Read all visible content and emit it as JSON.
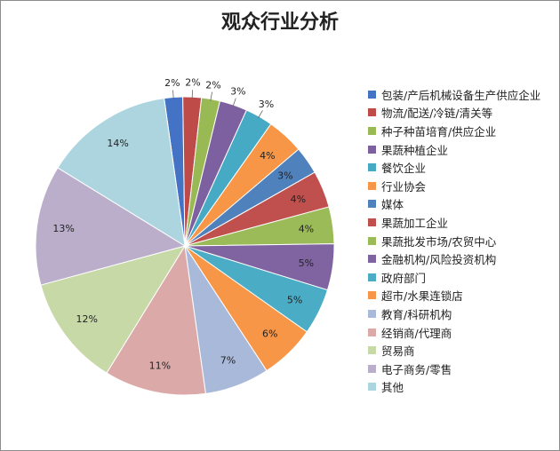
{
  "chart_data": {
    "type": "pie",
    "title": "观众行业分析",
    "legend_position": "right",
    "start_angle_deg": -8,
    "direction": "clockwise",
    "slices": [
      {
        "name": "包装/产后机械设备生产供应企业",
        "value": 2,
        "label": "2%",
        "color": "#4472c4"
      },
      {
        "name": "物流/配送/冷链/清关等",
        "value": 2,
        "label": "2%",
        "color": "#be4b48"
      },
      {
        "name": "种子种苗培育/供应企业",
        "value": 2,
        "label": "2%",
        "color": "#98b954"
      },
      {
        "name": "果蔬种植企业",
        "value": 3,
        "label": "3%",
        "color": "#7d60a0"
      },
      {
        "name": "餐饮企业",
        "value": 3,
        "label": "3%",
        "color": "#46aac5"
      },
      {
        "name": "行业协会",
        "value": 4,
        "label": "4%",
        "color": "#f79646"
      },
      {
        "name": "媒体",
        "value": 3,
        "label": "3%",
        "color": "#4f81bd"
      },
      {
        "name": "果蔬加工企业",
        "value": 4,
        "label": "4%",
        "color": "#c0504d"
      },
      {
        "name": "果蔬批发市场/农贸中心",
        "value": 4,
        "label": "4%",
        "color": "#9bbb59"
      },
      {
        "name": "金融机构/风险投资机构",
        "value": 5,
        "label": "5%",
        "color": "#8064a2"
      },
      {
        "name": "政府部门",
        "value": 5,
        "label": "5%",
        "color": "#4bacc6"
      },
      {
        "name": "超市/水果连锁店",
        "value": 6,
        "label": "6%",
        "color": "#f79646"
      },
      {
        "name": "教育/科研机构",
        "value": 7,
        "label": "7%",
        "color": "#a9b9d9"
      },
      {
        "name": "经销商/代理商",
        "value": 11,
        "label": "11%",
        "color": "#dba9a8"
      },
      {
        "name": "贸易商",
        "value": 12,
        "label": "12%",
        "color": "#c8d9a8"
      },
      {
        "name": "电子商务/零售",
        "value": 13,
        "label": "13%",
        "color": "#baaecb"
      },
      {
        "name": "其他",
        "value": 14,
        "label": "14%",
        "color": "#add5e0"
      }
    ]
  }
}
